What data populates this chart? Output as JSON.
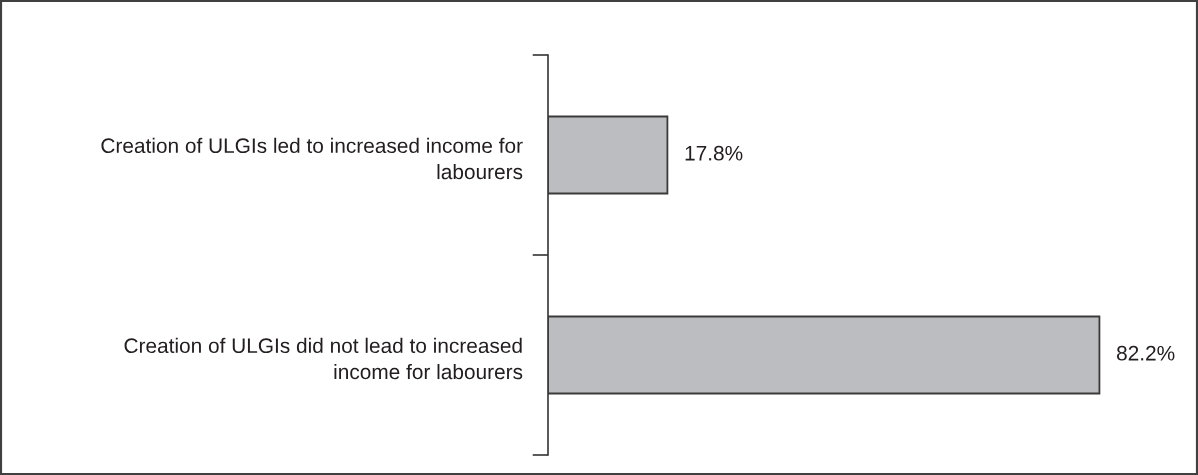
{
  "chart_data": {
    "type": "bar",
    "orientation": "horizontal",
    "categories": [
      "Creation of ULGIs led to increased income for\nlabourers",
      "Creation of ULGIs did not lead to increased\nincome for labourers"
    ],
    "values": [
      17.8,
      82.2
    ],
    "color": "#bcbdc0",
    "value_labels": [
      "17.8%",
      "82.2%"
    ],
    "tick_labels": "y"
  }
}
